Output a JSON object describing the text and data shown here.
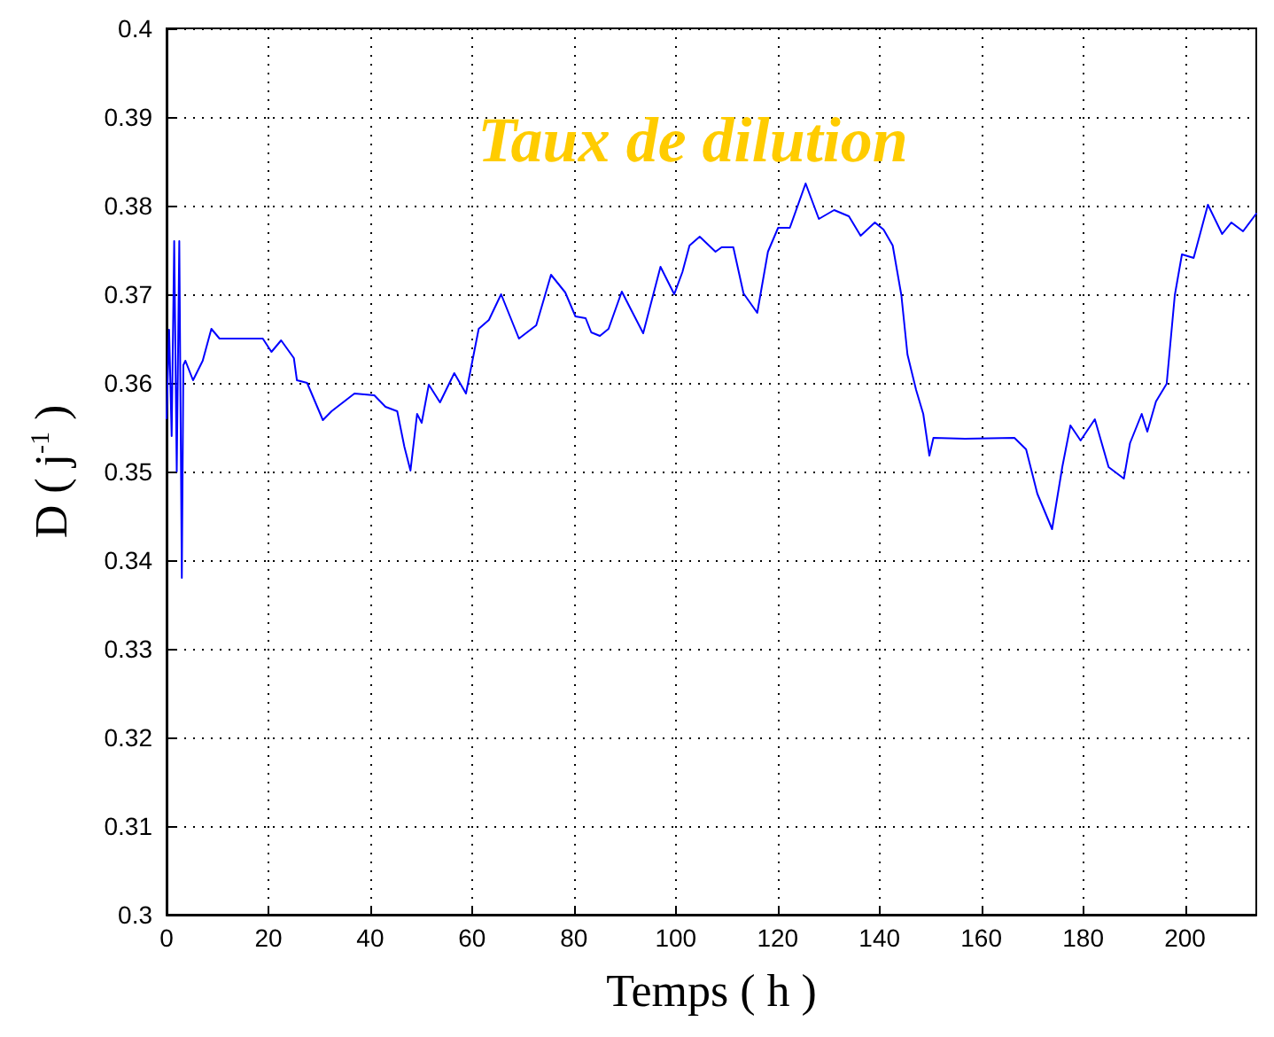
{
  "chart_data": {
    "type": "line",
    "title": "Taux de dilution",
    "xlabel": "Temps ( h )",
    "ylabel": "D ( j$^{-1}$ )",
    "xlim": [
      0,
      214
    ],
    "xticks": [
      0,
      20,
      40,
      60,
      80,
      100,
      120,
      140,
      160,
      180,
      200
    ],
    "ylim": [
      0.3,
      0.4
    ],
    "yticks": [
      0.3,
      0.31,
      0.32,
      0.33,
      0.34,
      0.35,
      0.36,
      0.37,
      0.38,
      0.39,
      0.4
    ],
    "grid": true,
    "line_style": "solid",
    "marker": "none",
    "series": [
      {
        "color": "#0000ff",
        "x": [
          0,
          0.5,
          1,
          1.5,
          2,
          2.5,
          3,
          3.3,
          3.7,
          5.2,
          7.1,
          8.8,
          10.4,
          18.9,
          20.6,
          22.5,
          25,
          25.6,
          27.6,
          30.7,
          32.4,
          36.9,
          40.8,
          43,
          45.3,
          46.7,
          47.9,
          49.2,
          50.1,
          51.5,
          53.7,
          56.5,
          58.8,
          61.3,
          63.3,
          65.7,
          69.2,
          72.6,
          75.5,
          78.3,
          80.3,
          82.3,
          83.4,
          85.1,
          86.8,
          89.4,
          91.9,
          93.6,
          97,
          99.7,
          101.3,
          102.7,
          104.7,
          107.8,
          109,
          111.3,
          113.3,
          116,
          118.1,
          120.1,
          122.4,
          125.5,
          128.1,
          131.1,
          134,
          136.3,
          139.1,
          140.8,
          142.6,
          144.3,
          145.5,
          147.2,
          148.6,
          149.8,
          150.6,
          156.8,
          166.5,
          168.8,
          171,
          173.9,
          175.9,
          177.5,
          179.5,
          182.3,
          185,
          188,
          189.2,
          191.5,
          192.6,
          194.3,
          196.4,
          198,
          199.4,
          201.7,
          204.5,
          207.3,
          209.1,
          211.4,
          214
        ],
        "values": [
          0.356,
          0.366,
          0.354,
          0.376,
          0.35,
          0.376,
          0.338,
          0.362,
          0.3625,
          0.3603,
          0.3625,
          0.3661,
          0.365,
          0.365,
          0.3635,
          0.3648,
          0.3628,
          0.3603,
          0.36,
          0.3558,
          0.3568,
          0.3588,
          0.3586,
          0.3573,
          0.3568,
          0.3528,
          0.3501,
          0.3565,
          0.3555,
          0.3598,
          0.3578,
          0.3611,
          0.3588,
          0.3661,
          0.3671,
          0.37,
          0.365,
          0.3665,
          0.3722,
          0.3702,
          0.3675,
          0.3673,
          0.3657,
          0.3653,
          0.3661,
          0.3703,
          0.3675,
          0.3656,
          0.3731,
          0.37,
          0.3725,
          0.3755,
          0.3765,
          0.3748,
          0.3753,
          0.3753,
          0.3701,
          0.3679,
          0.3748,
          0.3775,
          0.3775,
          0.3825,
          0.3785,
          0.3795,
          0.3788,
          0.3766,
          0.3781,
          0.3773,
          0.3755,
          0.3699,
          0.3632,
          0.3592,
          0.3565,
          0.3518,
          0.3538,
          0.3537,
          0.3538,
          0.3525,
          0.3475,
          0.3435,
          0.3505,
          0.3552,
          0.3535,
          0.3559,
          0.3505,
          0.3492,
          0.3532,
          0.3565,
          0.3545,
          0.3579,
          0.3599,
          0.3699,
          0.3745,
          0.3741,
          0.3801,
          0.3768,
          0.3781,
          0.3771,
          0.3791
        ]
      }
    ]
  }
}
